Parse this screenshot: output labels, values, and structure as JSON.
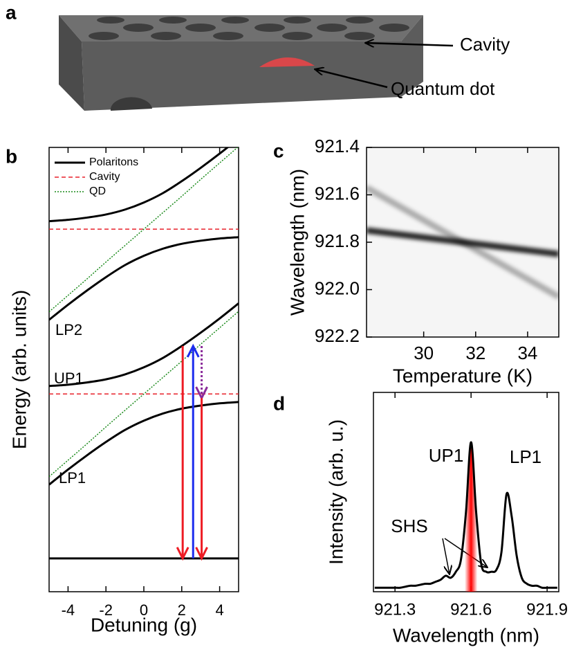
{
  "panel_a": {
    "label": "a",
    "annotations": [
      "Cavity",
      "Quantum dot"
    ]
  },
  "chart_data": [
    {
      "type": "line",
      "panel_label": "b",
      "x_label": "Detuning (g)",
      "y_label": "Energy (arb. units)",
      "x": [
        -5,
        -4,
        -3,
        -2,
        -1,
        0,
        1,
        2,
        3,
        4,
        5
      ],
      "xlim": [
        -5,
        5
      ],
      "xticks": [
        -4,
        -2,
        0,
        2,
        4
      ],
      "ylim": [
        0,
        10
      ],
      "legend": "upper left",
      "series": [
        {
          "name": "Polaritons",
          "color": "#000000",
          "style": "solid",
          "lines": [
            [
              8.34,
              8.37,
              8.42,
              8.49,
              8.6,
              8.76,
              8.97,
              9.24,
              9.54,
              9.86,
              10.2
            ],
            [
              6.12,
              6.46,
              6.78,
              7.08,
              7.35,
              7.56,
              7.72,
              7.83,
              7.9,
              7.95,
              7.98
            ],
            [
              4.63,
              4.66,
              4.71,
              4.78,
              4.89,
              5.05,
              5.26,
              5.53,
              5.83,
              6.15,
              6.49
            ],
            [
              2.41,
              2.75,
              3.07,
              3.37,
              3.64,
              3.85,
              4.01,
              4.12,
              4.19,
              4.24,
              4.27
            ],
            [
              0.75,
              0.75,
              0.75,
              0.75,
              0.75,
              0.75,
              0.75,
              0.75,
              0.75,
              0.75,
              0.75
            ]
          ]
        },
        {
          "name": "Cavity",
          "color": "#e8202a",
          "style": "dashed",
          "lines": [
            [
              8.16,
              8.16,
              8.16,
              8.16,
              8.16,
              8.16,
              8.16,
              8.16,
              8.16,
              8.16,
              8.16
            ],
            [
              4.45,
              4.45,
              4.45,
              4.45,
              4.45,
              4.45,
              4.45,
              4.45,
              4.45,
              4.45,
              4.45
            ]
          ]
        },
        {
          "name": "QD",
          "color": "#1a8a1a",
          "style": "dotted",
          "lines": [
            [
              6.3,
              6.67,
              7.04,
              7.42,
              7.79,
              8.16,
              8.53,
              8.9,
              9.28,
              9.65,
              10.02
            ],
            [
              2.59,
              2.96,
              3.33,
              3.71,
              4.08,
              4.45,
              4.82,
              5.19,
              5.57,
              5.94,
              6.31
            ]
          ]
        }
      ],
      "curve_labels": [
        "LP2",
        "UP1",
        "LP1"
      ],
      "arrows": [
        {
          "x": 2.05,
          "from": 5.53,
          "to": 0.75,
          "color": "#ee1c24",
          "style": "solid"
        },
        {
          "x": 2.6,
          "from": 0.75,
          "to": 5.53,
          "color": "#1c2cee",
          "style": "solid"
        },
        {
          "x": 3.05,
          "from": 5.53,
          "to": 4.36,
          "color": "#8a2a9a",
          "style": "dotted"
        },
        {
          "x": 3.05,
          "from": 4.36,
          "to": 0.75,
          "color": "#ee1c24",
          "style": "solid"
        }
      ]
    },
    {
      "type": "heatmap",
      "panel_label": "c",
      "x_label": "Temperature (K)",
      "y_label": "Wavelength (nm)",
      "xlim": [
        27.8,
        35.2
      ],
      "xticks": [
        30,
        32,
        34
      ],
      "ylim": [
        922.2,
        921.4
      ],
      "yticks": [
        921.4,
        921.6,
        921.8,
        {
          "value": 922,
          "label": "922.0"
        },
        922.2
      ],
      "traces": [
        {
          "x": [
            27.8,
            35.2
          ],
          "y": [
            921.75,
            921.85
          ],
          "intensity": 0.85
        },
        {
          "x": [
            27.8,
            35.2
          ],
          "y": [
            921.57,
            922.03
          ],
          "intensity": 0.3
        }
      ]
    },
    {
      "type": "line",
      "panel_label": "d",
      "x_label": "Wavelength (nm)",
      "y_label": "Intensity (arb. u.)",
      "xlim": [
        921.215,
        921.946
      ],
      "xticks": [
        921.3,
        921.6,
        921.9
      ],
      "ylim": [
        0,
        1
      ],
      "color": "#000000",
      "x": [
        921.22,
        921.24,
        921.26,
        921.28,
        921.3,
        921.32,
        921.34,
        921.36,
        921.38,
        921.4,
        921.42,
        921.44,
        921.46,
        921.48,
        921.5,
        921.52,
        921.54,
        921.56,
        921.58,
        921.6,
        921.62,
        921.64,
        921.66,
        921.68,
        921.7,
        921.72,
        921.74,
        921.76,
        921.78,
        921.8,
        921.82,
        921.84,
        921.86,
        921.88,
        921.9,
        921.92,
        921.94
      ],
      "values": [
        0.02,
        0.02,
        0.02,
        0.02,
        0.02,
        0.02,
        0.025,
        0.03,
        0.03,
        0.035,
        0.04,
        0.04,
        0.05,
        0.06,
        0.08,
        0.07,
        0.1,
        0.16,
        0.4,
        0.75,
        0.4,
        0.14,
        0.1,
        0.1,
        0.11,
        0.2,
        0.49,
        0.38,
        0.18,
        0.07,
        0.04,
        0.03,
        0.03,
        0.02,
        0.02,
        0.02,
        0.02
      ],
      "highlight": {
        "color": "#ff0000",
        "xlim": [
          921.575,
          921.625
        ]
      },
      "annotations": [
        "UP1",
        "LP1",
        "SHS"
      ]
    }
  ]
}
